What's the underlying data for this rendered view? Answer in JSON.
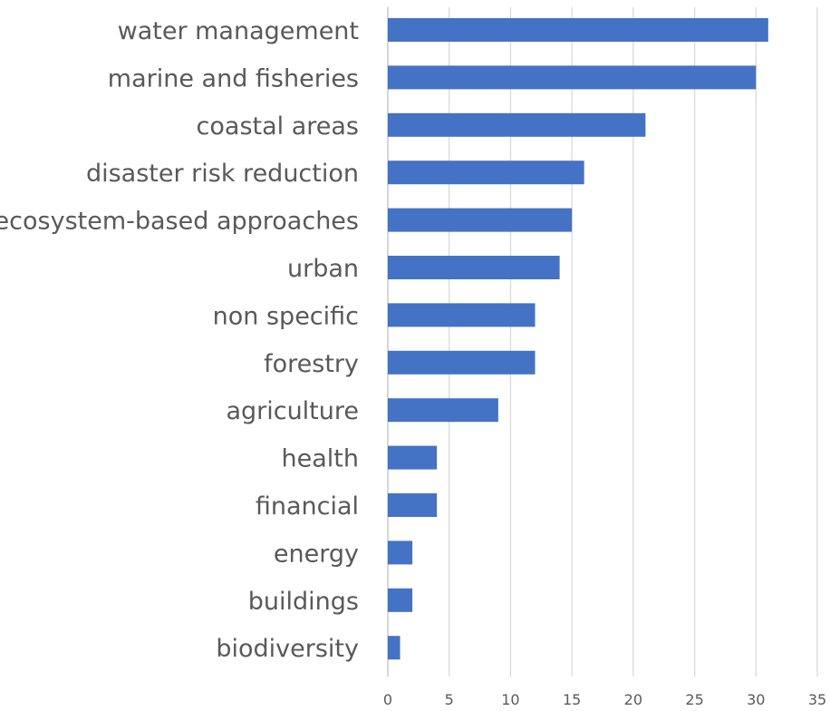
{
  "chart_data": {
    "type": "bar",
    "orientation": "horizontal",
    "categories": [
      "water management",
      "marine and fisheries",
      "coastal areas",
      "disaster risk reduction",
      "ecosystem-based approaches",
      "urban",
      "non specific",
      "forestry",
      "agriculture",
      "health",
      "financial",
      "energy",
      "buildings",
      "biodiversity"
    ],
    "values": [
      31,
      30,
      21,
      16,
      15,
      14,
      12,
      12,
      9,
      4,
      4,
      2,
      2,
      1
    ],
    "xlim": [
      0,
      35
    ],
    "xticks": [
      "0",
      "5",
      "10",
      "15",
      "20",
      "25",
      "30",
      "35"
    ],
    "grid": "vertical",
    "legend": "none",
    "title": "",
    "xlabel": "",
    "ylabel": "",
    "bar_color": "#4472c4",
    "gridline_color": "#d9d9d9",
    "label_color": "#595959"
  }
}
